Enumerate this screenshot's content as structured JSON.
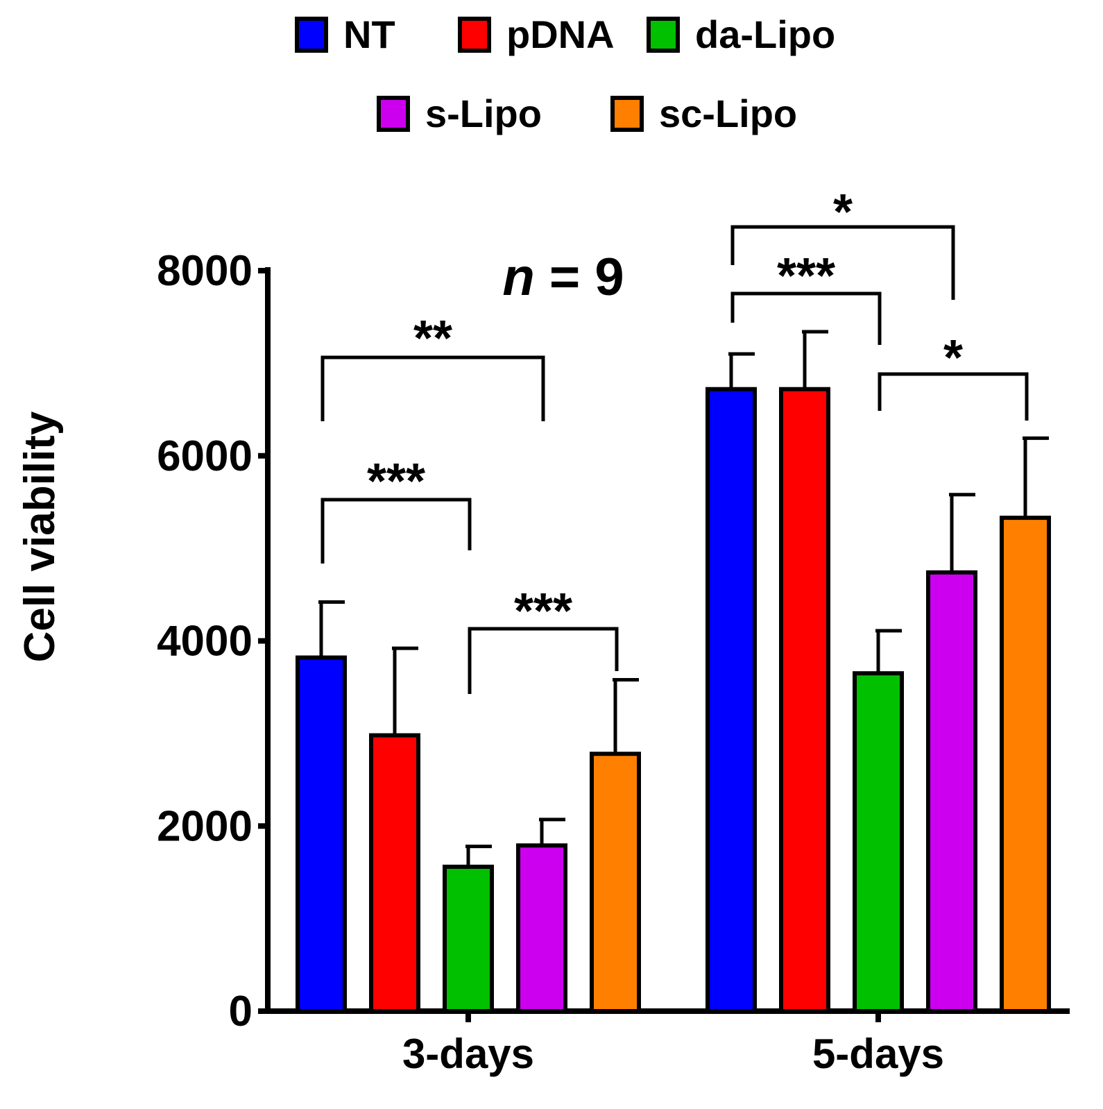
{
  "chart_data": {
    "type": "bar",
    "title": "",
    "annotation": "n = 9",
    "xlabel": "",
    "ylabel": "Cell viability",
    "ylim": [
      0,
      8000
    ],
    "yticks": [
      "0",
      "2000",
      "4000",
      "6000",
      "8000"
    ],
    "categories": [
      "3-days",
      "5-days"
    ],
    "legend_position": "top-center",
    "series": [
      {
        "name": "NT",
        "color": "#0000ff",
        "values": [
          3820,
          6720
        ],
        "errors": [
          600,
          380
        ]
      },
      {
        "name": "pDNA",
        "color": "#ff0000",
        "values": [
          2980,
          6720
        ],
        "errors": [
          940,
          620
        ]
      },
      {
        "name": "da-Lipo",
        "color": "#00c000",
        "values": [
          1560,
          3650
        ],
        "errors": [
          220,
          460
        ]
      },
      {
        "name": "s-Lipo",
        "color": "#cc00ee",
        "values": [
          1790,
          4740
        ],
        "errors": [
          280,
          840
        ]
      },
      {
        "name": "sc-Lipo",
        "color": "#ff8000",
        "values": [
          2780,
          5330
        ],
        "errors": [
          800,
          860
        ]
      }
    ],
    "significance": [
      {
        "category": "3-days",
        "from": "NT",
        "to": "s-Lipo",
        "label": "**"
      },
      {
        "category": "3-days",
        "from": "NT",
        "to": "da-Lipo",
        "label": "***"
      },
      {
        "category": "3-days",
        "from": "da-Lipo",
        "to": "sc-Lipo",
        "label": "***"
      },
      {
        "category": "5-days",
        "from": "NT",
        "to": "s-Lipo",
        "label": "*"
      },
      {
        "category": "5-days",
        "from": "NT",
        "to": "da-Lipo",
        "label": "***"
      },
      {
        "category": "5-days",
        "from": "da-Lipo",
        "to": "sc-Lipo",
        "label": "*"
      }
    ]
  }
}
